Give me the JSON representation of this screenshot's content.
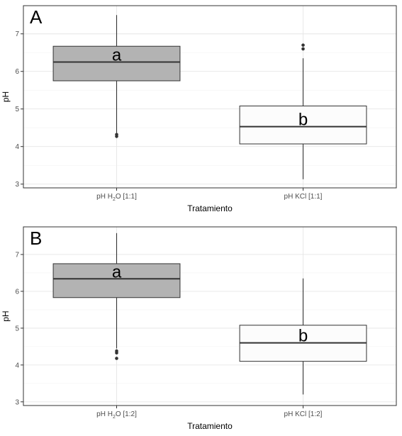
{
  "chart_data": [
    {
      "type": "box",
      "panel_label": "A",
      "xlabel": "Tratamiento",
      "ylabel": "pH",
      "ylim": [
        2.9,
        7.75
      ],
      "yticks": [
        3,
        4,
        5,
        6,
        7
      ],
      "grid": true,
      "categories": [
        {
          "main": "pH H",
          "sub": "2",
          "post": "O [1:1]"
        },
        {
          "main": "pH KCl [1:1]",
          "sub": "",
          "post": ""
        }
      ],
      "boxes": [
        {
          "min": 4.36,
          "q1": 5.75,
          "median": 6.25,
          "q3": 6.67,
          "max": 7.5,
          "outliers": [
            4.27,
            4.32
          ],
          "fill": "#b3b3b3",
          "letter": "a"
        },
        {
          "min": 3.13,
          "q1": 4.07,
          "median": 4.53,
          "q3": 5.08,
          "max": 6.35,
          "outliers": [
            6.6,
            6.7
          ],
          "fill": "#fcfcfc",
          "letter": "b"
        }
      ]
    },
    {
      "type": "box",
      "panel_label": "B",
      "xlabel": "Tratamiento",
      "ylabel": "pH",
      "ylim": [
        2.9,
        7.75
      ],
      "yticks": [
        3,
        4,
        5,
        6,
        7
      ],
      "grid": true,
      "categories": [
        {
          "main": "pH H",
          "sub": "2",
          "post": "O [1:2]"
        },
        {
          "main": "pH KCl [1:2]",
          "sub": "",
          "post": ""
        }
      ],
      "boxes": [
        {
          "min": 4.45,
          "q1": 5.83,
          "median": 6.34,
          "q3": 6.75,
          "max": 7.58,
          "outliers": [
            4.18,
            4.33,
            4.38
          ],
          "fill": "#b3b3b3",
          "letter": "a"
        },
        {
          "min": 3.2,
          "q1": 4.1,
          "median": 4.6,
          "q3": 5.08,
          "max": 6.35,
          "outliers": [],
          "fill": "#fcfcfc",
          "letter": "b"
        }
      ]
    }
  ]
}
